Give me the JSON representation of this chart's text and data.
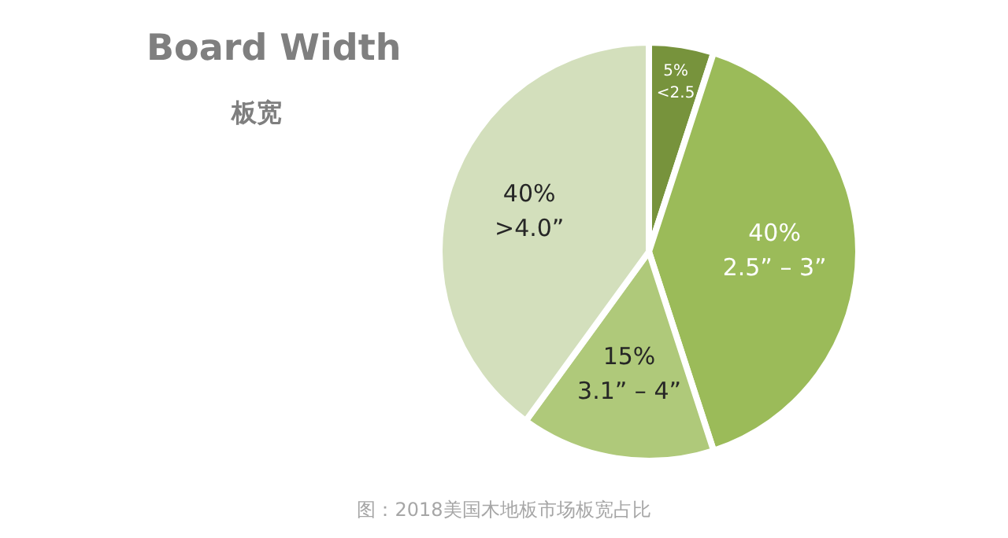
{
  "chart_data": {
    "type": "pie",
    "title": "Board Width",
    "subtitle": "板宽",
    "categories": [
      "<2.5",
      "2.5” – 3”",
      "3.1” – 4”",
      ">4.0”"
    ],
    "values": [
      5,
      40,
      15,
      40
    ],
    "value_labels": [
      "5%",
      "40%",
      "15%",
      "40%"
    ],
    "colors": [
      "#77933c",
      "#9bbb59",
      "#afc97a",
      "#d3dfbc"
    ],
    "annotations": [
      "图：2018美国木地板市场板宽占比"
    ],
    "legend": false
  }
}
